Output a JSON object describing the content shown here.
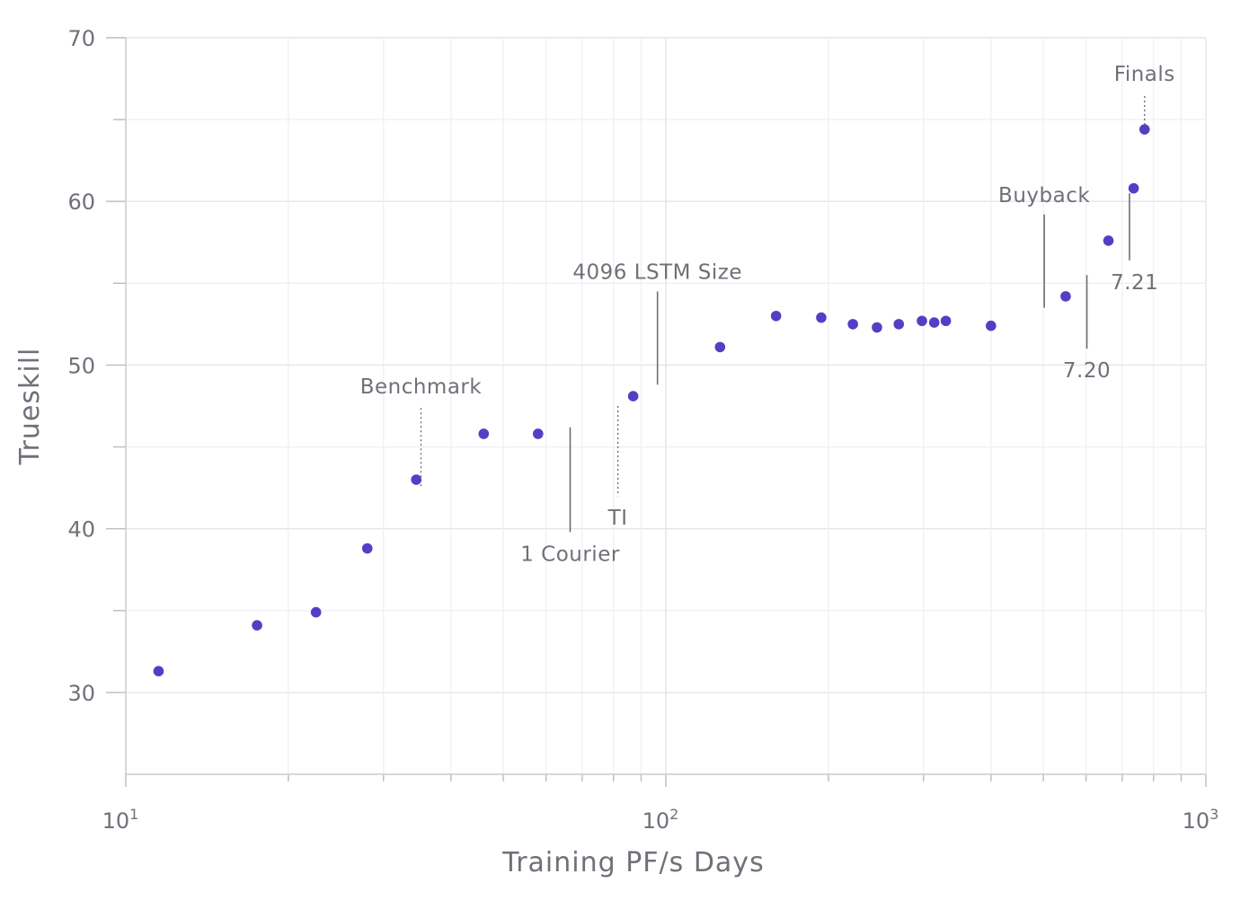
{
  "chart_data": {
    "type": "scatter",
    "title": "",
    "xlabel": "Training PF/s Days",
    "ylabel": "Trueskill",
    "xscale": "log",
    "xlim": [
      10,
      1000
    ],
    "ylim": [
      25,
      70
    ],
    "grid": true,
    "point_color": "#5140c4",
    "x_ticks": [
      {
        "value": 10,
        "base": "10",
        "exp": "1"
      },
      {
        "value": 100,
        "base": "10",
        "exp": "2"
      },
      {
        "value": 1000,
        "base": "10",
        "exp": "3"
      }
    ],
    "y_ticks": [
      {
        "value": 30,
        "label": "30"
      },
      {
        "value": 40,
        "label": "40"
      },
      {
        "value": 50,
        "label": "50"
      },
      {
        "value": 60,
        "label": "60"
      },
      {
        "value": 70,
        "label": "70"
      }
    ],
    "points": [
      {
        "x": 11.5,
        "y": 31.3
      },
      {
        "x": 17.5,
        "y": 34.1
      },
      {
        "x": 22.5,
        "y": 34.9
      },
      {
        "x": 28.0,
        "y": 38.8
      },
      {
        "x": 34.5,
        "y": 43.0
      },
      {
        "x": 46.0,
        "y": 45.8
      },
      {
        "x": 58.0,
        "y": 45.8
      },
      {
        "x": 87.0,
        "y": 48.1
      },
      {
        "x": 126.0,
        "y": 51.1
      },
      {
        "x": 160.0,
        "y": 53.0
      },
      {
        "x": 194.0,
        "y": 52.9
      },
      {
        "x": 222.0,
        "y": 52.5
      },
      {
        "x": 246.0,
        "y": 52.3
      },
      {
        "x": 270.0,
        "y": 52.5
      },
      {
        "x": 298.0,
        "y": 52.7
      },
      {
        "x": 314.0,
        "y": 52.6
      },
      {
        "x": 330.0,
        "y": 52.7
      },
      {
        "x": 400.0,
        "y": 52.4
      },
      {
        "x": 550.0,
        "y": 54.2
      },
      {
        "x": 660.0,
        "y": 57.6
      },
      {
        "x": 735.0,
        "y": 60.8
      },
      {
        "x": 770.0,
        "y": 64.4
      }
    ],
    "annotations": [
      {
        "label": "Benchmark",
        "x": 35.2,
        "y_from": 42.6,
        "y_to": 47.5,
        "style": "dotted",
        "label_pos": "above",
        "label_x": 35.2
      },
      {
        "label": "1 Courier",
        "x": 66.5,
        "y_from": 46.2,
        "y_to": 39.8,
        "style": "solid",
        "label_pos": "below",
        "label_x": 66.5
      },
      {
        "label": "TI",
        "x": 81.5,
        "y_from": 47.5,
        "y_to": 42.0,
        "style": "dotted",
        "label_pos": "below",
        "label_x": 81.5
      },
      {
        "label": "4096 LSTM Size",
        "x": 96.5,
        "y_from": 48.8,
        "y_to": 54.5,
        "style": "solid",
        "label_pos": "above",
        "label_x": 96.5
      },
      {
        "label": "Buyback",
        "x": 502.0,
        "y_from": 53.5,
        "y_to": 59.2,
        "style": "solid",
        "label_pos": "above",
        "label_x": 502.0
      },
      {
        "label": "7.20",
        "x": 602.0,
        "y_from": 55.5,
        "y_to": 51.0,
        "style": "solid",
        "label_pos": "below",
        "label_x": 602.0
      },
      {
        "label": "7.21",
        "x": 722.0,
        "y_from": 60.5,
        "y_to": 56.4,
        "style": "solid",
        "label_pos": "below",
        "label_x": 738.0
      },
      {
        "label": "Finals",
        "x": 770.0,
        "y_from": 64.4,
        "y_to": 66.6,
        "style": "dotted",
        "label_pos": "above",
        "label_x": 770.0
      }
    ]
  }
}
